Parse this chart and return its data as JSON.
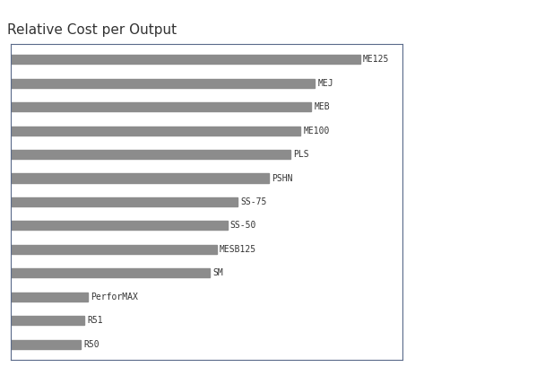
{
  "title": "Relative Cost per Output",
  "categories": [
    "ME125",
    "MEJ",
    "MEB",
    "ME100",
    "PLS",
    "PSHN",
    "SS-75",
    "SS-50",
    "MESB125",
    "SM",
    "PerforMAX",
    "R51",
    "R50"
  ],
  "values": [
    100,
    87,
    86,
    83,
    80,
    74,
    65,
    62,
    59,
    57,
    22,
    21,
    20
  ],
  "bar_color": "#8c8c8c",
  "background_color": "#ffffff",
  "plot_bg_color": "#ffffff",
  "border_color": "#5a6a8a",
  "title_fontsize": 11,
  "label_fontsize": 7,
  "xlim": [
    0,
    112
  ]
}
